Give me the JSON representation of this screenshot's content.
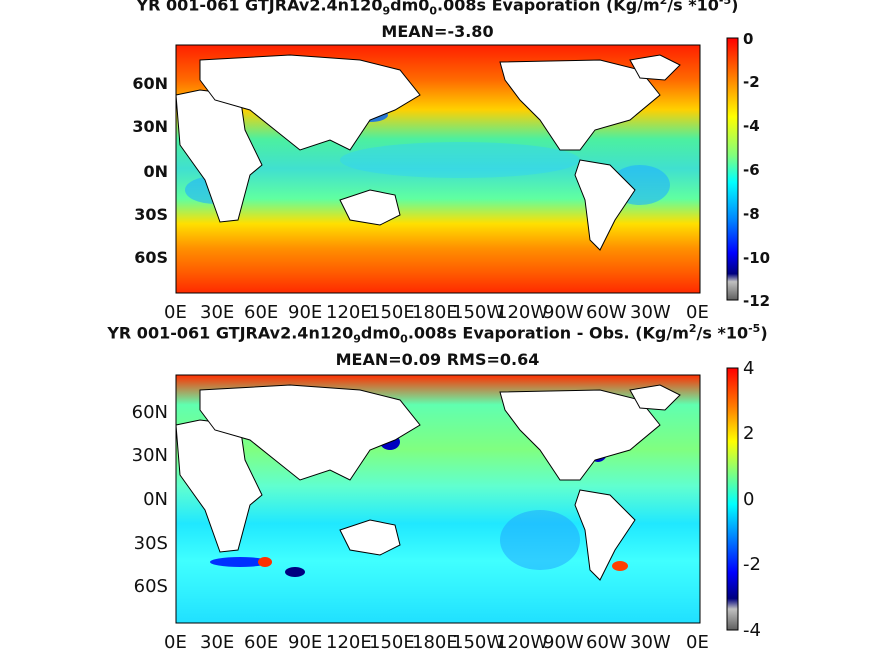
{
  "top_panel": {
    "title_prefix": "YR 001-061 GTJRAv2.4n120",
    "title_sub1": "9",
    "title_mid": "dm0",
    "title_sub2": "0",
    "title_suffix": ".008s  Evaporation (Kg/m",
    "title_sup1": "2",
    "title_unit": "/s *10",
    "title_sup2": "-5",
    "title_end": ")",
    "subtitle": "MEAN=-3.80",
    "yticks": [
      "60N",
      "30N",
      "0N",
      "30S",
      "60S"
    ],
    "xticks": [
      "0E",
      "30E",
      "60E",
      "90E",
      "120E",
      "150E",
      "180E",
      "150W",
      "120W",
      "90W",
      "60W",
      "30W",
      "0E"
    ],
    "colorbar_ticks": [
      "0",
      "-2",
      "-4",
      "-6",
      "-8",
      "-10",
      "-12"
    ]
  },
  "bottom_panel": {
    "title_prefix": "YR 001-061 GTJRAv2.4n120",
    "title_sub1": "9",
    "title_mid": "dm0",
    "title_sub2": "0",
    "title_suffix": ".008s Evaporation - Obs. (Kg/m",
    "title_sup1": "2",
    "title_unit": "/s *10",
    "title_sup2": "-5",
    "title_end": ")",
    "subtitle": "MEAN=0.09   RMS=0.64",
    "yticks": [
      "60N",
      "30N",
      "0N",
      "30S",
      "60S"
    ],
    "xticks": [
      "0E",
      "30E",
      "60E",
      "90E",
      "120E",
      "150E",
      "180E",
      "150W",
      "120W",
      "90W",
      "60W",
      "30W",
      "0E"
    ],
    "colorbar_ticks": [
      "4",
      "2",
      "0",
      "-2",
      "-4"
    ]
  },
  "colors": {
    "land": "#ffffff",
    "coast": "#000000",
    "jet": [
      "#00007f",
      "#0000ff",
      "#007fff",
      "#00ffff",
      "#7fff7f",
      "#ffff00",
      "#ff7f00",
      "#ff0000",
      "#7f0000"
    ]
  }
}
